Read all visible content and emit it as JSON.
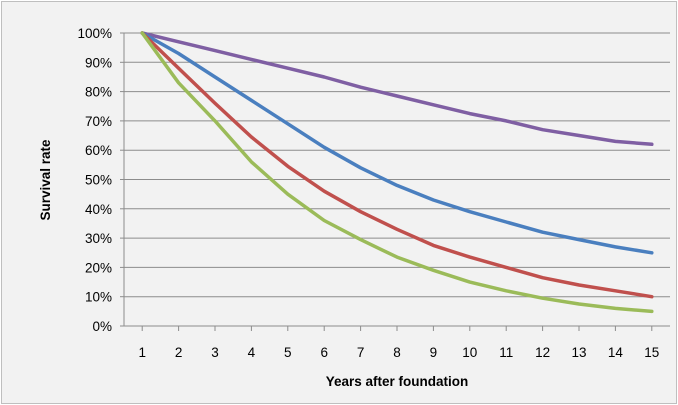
{
  "chart_data": {
    "type": "line",
    "title": "",
    "xlabel": "Years after foundation",
    "ylabel": "Survival rate",
    "x": [
      1,
      2,
      3,
      4,
      5,
      6,
      7,
      8,
      9,
      10,
      11,
      12,
      13,
      14,
      15
    ],
    "xlim": [
      0.5,
      15.5
    ],
    "ylim": [
      0,
      100
    ],
    "yticks": [
      0,
      10,
      20,
      30,
      40,
      50,
      60,
      70,
      80,
      90,
      100
    ],
    "ytick_labels": [
      "0%",
      "10%",
      "20%",
      "30%",
      "40%",
      "50%",
      "60%",
      "70%",
      "80%",
      "90%",
      "100%"
    ],
    "xtick_labels": [
      "1",
      "2",
      "3",
      "4",
      "5",
      "6",
      "7",
      "8",
      "9",
      "10",
      "11",
      "12",
      "13",
      "14",
      "15"
    ],
    "grid": "horizontal",
    "legend": "none",
    "series": [
      {
        "color": "#7f5fa3",
        "values": [
          100,
          97,
          94,
          91,
          88,
          85,
          81.5,
          78.5,
          75.5,
          72.5,
          70,
          67,
          65,
          63,
          62
        ]
      },
      {
        "color": "#4a7fbf",
        "values": [
          100,
          93,
          85,
          77,
          69,
          61,
          54,
          48,
          43,
          39,
          35.5,
          32,
          29.5,
          27,
          25
        ]
      },
      {
        "color": "#c0504d",
        "values": [
          100,
          88,
          76,
          64.5,
          54.5,
          46,
          39,
          33,
          27.5,
          23.5,
          20,
          16.5,
          14,
          12,
          10
        ]
      },
      {
        "color": "#9bbb59",
        "values": [
          100,
          83,
          70,
          56,
          45,
          36,
          29.5,
          23.5,
          19,
          15,
          12,
          9.5,
          7.5,
          6,
          5
        ]
      }
    ]
  }
}
